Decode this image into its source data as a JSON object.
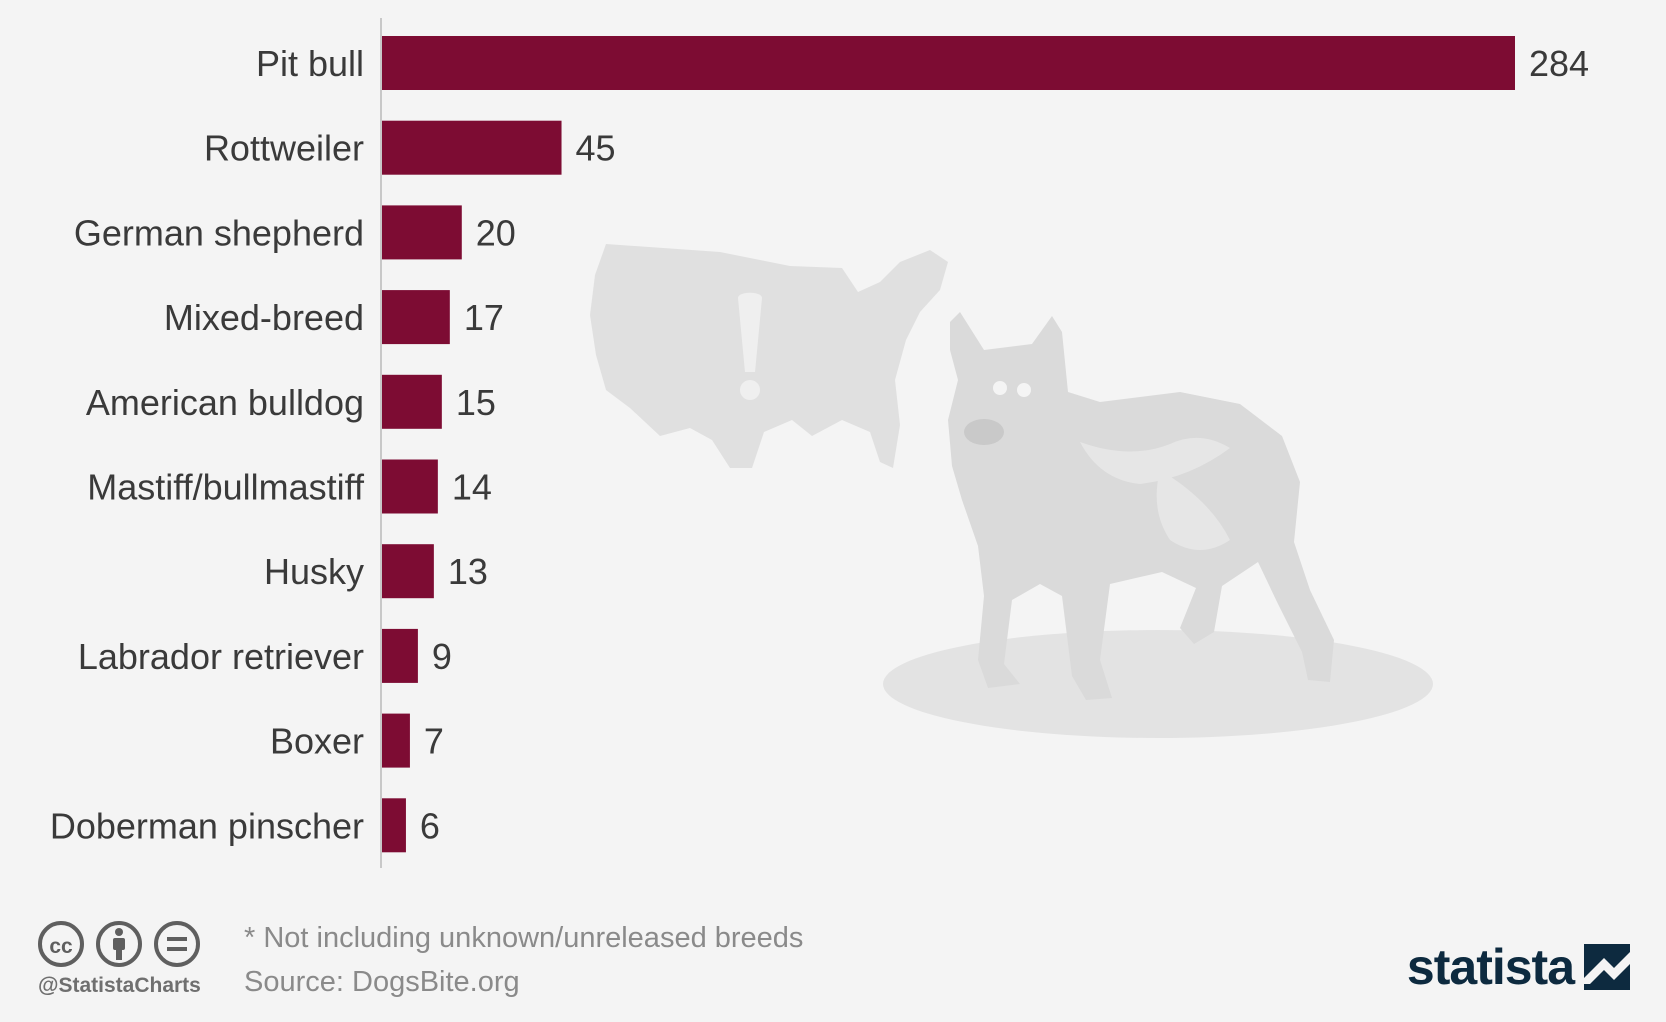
{
  "chart_data": {
    "type": "bar",
    "orientation": "horizontal",
    "categories": [
      "Pit bull",
      "Rottweiler",
      "German shepherd",
      "Mixed-breed",
      "American bulldog",
      "Mastiff/bullmastiff",
      "Husky",
      "Labrador retriever",
      "Boxer",
      "Doberman pinscher"
    ],
    "values": [
      284,
      45,
      20,
      17,
      15,
      14,
      13,
      9,
      7,
      6
    ],
    "value_labels": [
      "284",
      "45",
      "20",
      "17",
      "15",
      "14",
      "13",
      "9",
      "7",
      "6"
    ],
    "bar_color": "#7d0c33",
    "grid": false,
    "legend": "none"
  },
  "footer": {
    "note": "* Not including unknown/unreleased breeds",
    "source": "Source: DogsBite.org",
    "handle": "@StatistaCharts",
    "brand": "statista"
  },
  "icons": [
    "cc-icon",
    "attribution-icon",
    "no-derivatives-icon",
    "statista-logo-icon"
  ],
  "colors": {
    "background": "#f4f4f4",
    "text": "#3a3a3a",
    "muted_text": "#8a8a8a",
    "brand": "#0d2a3f",
    "illustration": "#dadada"
  }
}
